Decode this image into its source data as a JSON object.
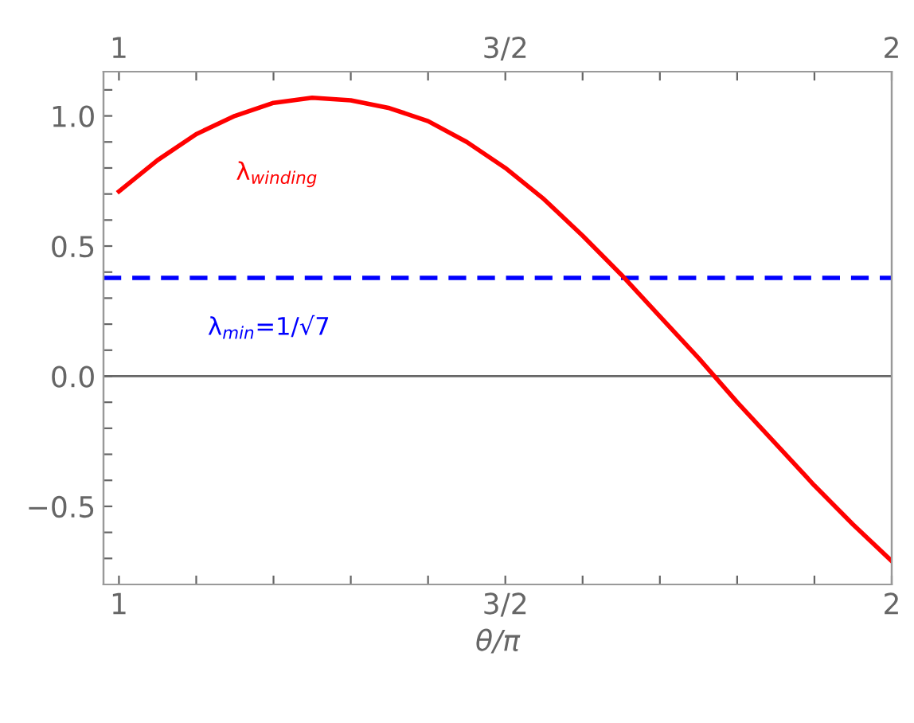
{
  "chart_data": {
    "type": "line",
    "xlabel": "θ/π",
    "x": [
      1.0,
      1.05,
      1.1,
      1.15,
      1.2,
      1.25,
      1.3,
      1.35,
      1.4,
      1.45,
      1.5,
      1.55,
      1.6,
      1.65,
      1.7,
      1.75,
      1.8,
      1.85,
      1.9,
      1.95,
      2.0
    ],
    "series": [
      {
        "name": "λ$_{winding}$",
        "color": "#ff0000",
        "values": [
          0.71,
          0.83,
          0.93,
          1.0,
          1.05,
          1.07,
          1.06,
          1.03,
          0.98,
          0.9,
          0.8,
          0.68,
          0.54,
          0.39,
          0.23,
          0.07,
          -0.1,
          -0.26,
          -0.42,
          -0.57,
          -0.71
        ]
      }
    ],
    "xlim": [
      0.98,
      2.0
    ],
    "ylim": [
      -0.8,
      1.17
    ],
    "xticks": [
      1,
      {
        "value": 1.1,
        "label": null
      },
      {
        "value": 1.2,
        "label": null
      },
      {
        "value": 1.3,
        "label": null
      },
      {
        "value": 1.4,
        "label": null
      },
      {
        "value": 1.5,
        "label": "3/2"
      },
      {
        "value": 1.6,
        "label": null
      },
      {
        "value": 1.7,
        "label": null
      },
      {
        "value": 1.8,
        "label": null
      },
      {
        "value": 1.9,
        "label": null
      },
      2
    ],
    "x2lim": [
      0.98,
      2.0
    ],
    "x2ticks": [
      1,
      {
        "value": 1.1,
        "label": null
      },
      {
        "value": 1.2,
        "label": null
      },
      {
        "value": 1.3,
        "label": null
      },
      {
        "value": 1.4,
        "label": null
      },
      {
        "value": 1.5,
        "label": "3/2"
      },
      {
        "value": 1.6,
        "label": null
      },
      {
        "value": 1.7,
        "label": null
      },
      {
        "value": 1.8,
        "label": null
      },
      {
        "value": 1.9,
        "label": null
      },
      2
    ],
    "yticks": [
      {
        "value": -0.7,
        "label": null
      },
      {
        "value": -0.6,
        "label": null
      },
      {
        "value": -0.5,
        "label": "−0.5"
      },
      {
        "value": -0.4,
        "label": null
      },
      {
        "value": -0.3,
        "label": null
      },
      {
        "value": -0.2,
        "label": null
      },
      {
        "value": -0.1,
        "label": null
      },
      {
        "value": 0,
        "label": "0.0"
      },
      {
        "value": 0.1,
        "label": null
      },
      {
        "value": 0.2,
        "label": null
      },
      {
        "value": 0.3,
        "label": null
      },
      {
        "value": 0.4,
        "label": null
      },
      {
        "value": 0.5,
        "label": "0.5"
      },
      {
        "value": 0.6,
        "label": null
      },
      {
        "value": 0.7,
        "label": null
      },
      {
        "value": 0.8,
        "label": null
      },
      {
        "value": 0.9,
        "label": null
      },
      {
        "value": 1.0,
        "label": "1.0"
      },
      {
        "value": 1.1,
        "label": null
      }
    ],
    "ref_lines": [
      {
        "axis": "y",
        "value": 0,
        "color": "#666666",
        "line_style": "solid"
      },
      {
        "axis": "y",
        "value": 0.378,
        "color": "#0000ff",
        "line_style": "dashed"
      }
    ],
    "annotations": [
      "λ$_{min}$=1/√7"
    ],
    "grid": false,
    "legend": false,
    "marker": "none",
    "line_style": "solid"
  }
}
